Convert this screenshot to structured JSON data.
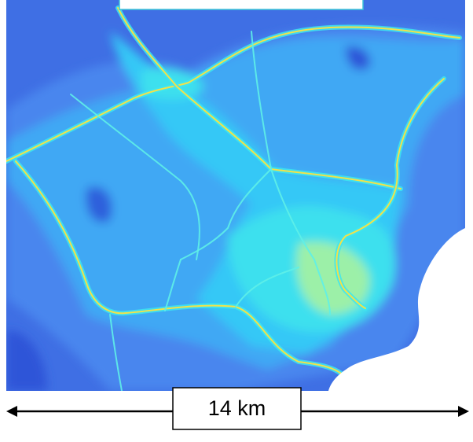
{
  "scale_label": "14 km"
}
